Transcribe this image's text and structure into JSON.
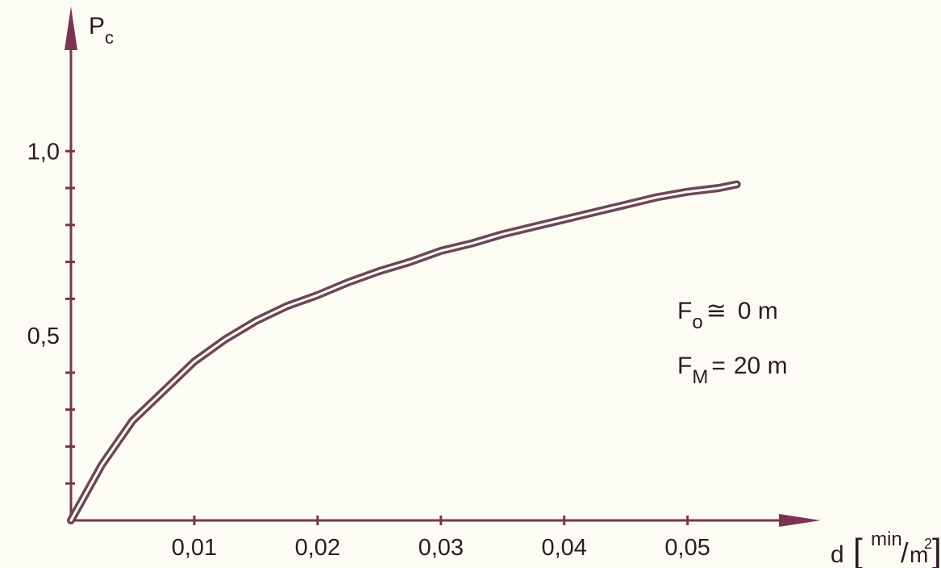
{
  "chart_data": {
    "type": "line",
    "title": "",
    "ylabel": "P",
    "ylabel_sub": "c",
    "xlabel": "d",
    "xunit": {
      "num": "min",
      "den": "m",
      "den_exp": "2"
    },
    "xlim": [
      0,
      0.058
    ],
    "ylim": [
      0,
      1.3
    ],
    "x_ticks": [
      0.01,
      0.02,
      0.03,
      0.04,
      0.05
    ],
    "x_tick_labels": [
      "0,01",
      "0,02",
      "0,03",
      "0,04",
      "0,05"
    ],
    "y_ticks": [
      0.5,
      1.0
    ],
    "y_tick_labels": [
      "0,5",
      "1,0"
    ],
    "y_minor_ticks": [
      0.1,
      0.2,
      0.3,
      0.4,
      0.6,
      0.7,
      0.8,
      0.9,
      1.0
    ],
    "grid": false,
    "line_color": "#6b4758",
    "axis_color": "#7a3450",
    "series": [
      {
        "x": [
          0,
          0.0025,
          0.005,
          0.0075,
          0.01,
          0.0125,
          0.015,
          0.0175,
          0.02,
          0.0225,
          0.025,
          0.0275,
          0.03,
          0.0325,
          0.035,
          0.0375,
          0.04,
          0.0425,
          0.045,
          0.0475,
          0.05,
          0.0525,
          0.054
        ],
        "y": [
          0,
          0.15,
          0.27,
          0.35,
          0.43,
          0.49,
          0.54,
          0.58,
          0.61,
          0.645,
          0.675,
          0.7,
          0.73,
          0.75,
          0.775,
          0.795,
          0.815,
          0.835,
          0.855,
          0.875,
          0.89,
          0.9,
          0.91
        ]
      }
    ],
    "annotations": [
      {
        "main": "F",
        "sub": "o",
        "rel": "≅",
        "rhs": "0 m"
      },
      {
        "main": "F",
        "sub": "M",
        "rel": "=",
        "rhs": "20 m"
      }
    ]
  }
}
